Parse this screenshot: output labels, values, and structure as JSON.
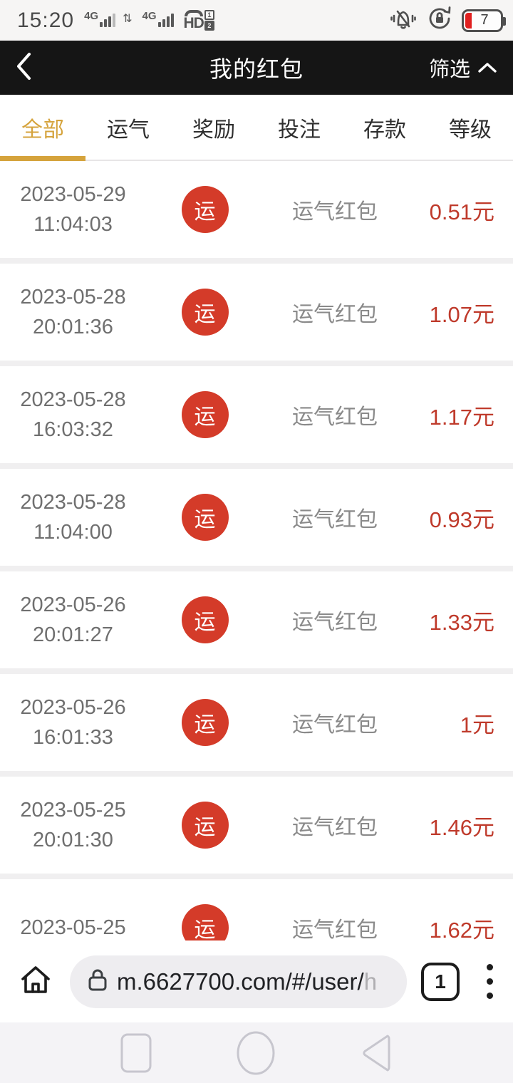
{
  "status_bar": {
    "time": "15:20",
    "sim1_network": "4G",
    "sim2_network": "4G",
    "updown_arrows": "⇅",
    "hd_label": "HD",
    "volte_sim1": "1",
    "volte_sim2": "2",
    "battery_level": "7"
  },
  "header": {
    "title": "我的红包",
    "filter_label": "筛选"
  },
  "tabs": [
    {
      "label": "全部",
      "active": true
    },
    {
      "label": "运气",
      "active": false
    },
    {
      "label": "奖励",
      "active": false
    },
    {
      "label": "投注",
      "active": false
    },
    {
      "label": "存款",
      "active": false
    },
    {
      "label": "等级",
      "active": false
    }
  ],
  "list": {
    "badge_char": "运",
    "items": [
      {
        "date": "2023-05-29",
        "time": "11:04:03",
        "type": "运气红包",
        "amount": "0.51元"
      },
      {
        "date": "2023-05-28",
        "time": "20:01:36",
        "type": "运气红包",
        "amount": "1.07元"
      },
      {
        "date": "2023-05-28",
        "time": "16:03:32",
        "type": "运气红包",
        "amount": "1.17元"
      },
      {
        "date": "2023-05-28",
        "time": "11:04:00",
        "type": "运气红包",
        "amount": "0.93元"
      },
      {
        "date": "2023-05-26",
        "time": "20:01:27",
        "type": "运气红包",
        "amount": "1.33元"
      },
      {
        "date": "2023-05-26",
        "time": "16:01:33",
        "type": "运气红包",
        "amount": "1元"
      },
      {
        "date": "2023-05-25",
        "time": "20:01:30",
        "type": "运气红包",
        "amount": "1.46元"
      },
      {
        "date": "2023-05-25",
        "time": "",
        "type": "运气红包",
        "amount": "1.62元"
      }
    ]
  },
  "browser_bar": {
    "url_visible": "m.6627700.com/#/user/",
    "url_truncated_char": "h",
    "tab_count": "1"
  },
  "colors": {
    "accent_gold": "#d5a33c",
    "amount_red": "#bf3a2b",
    "badge_red": "#d43b29",
    "header_bg": "#151515",
    "battery_warn_red": "#e02020"
  }
}
